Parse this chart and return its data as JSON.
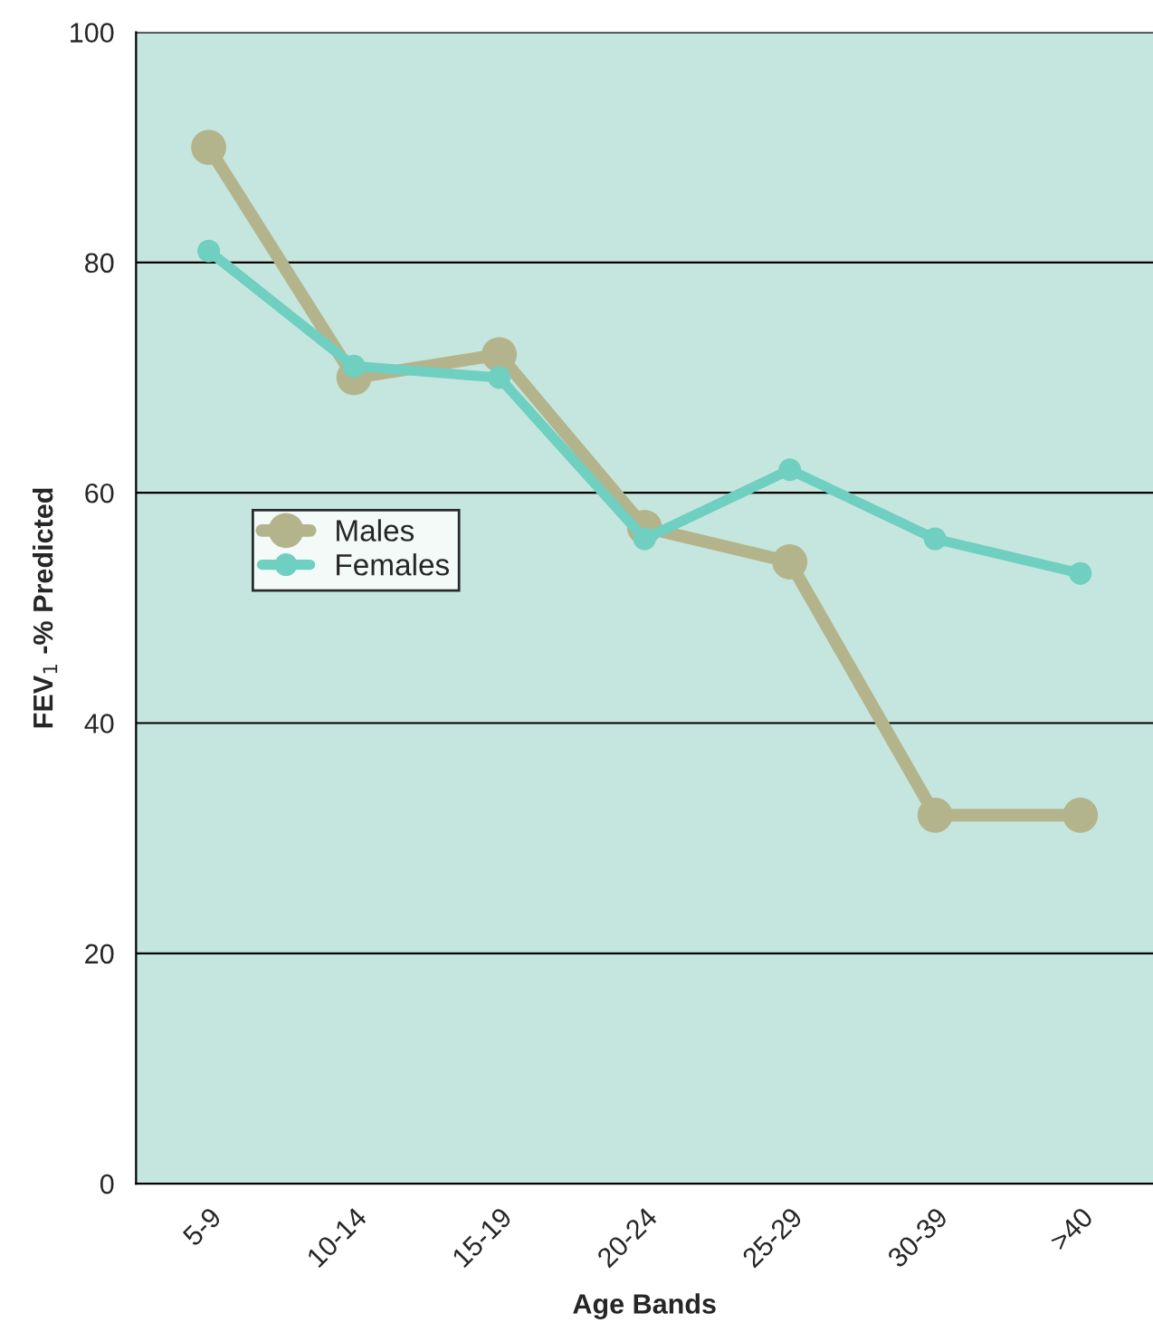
{
  "chart_data": {
    "type": "line",
    "xlabel": "Age Bands",
    "ylabel": "FEV$_{1}$ -% Predicted",
    "categories": [
      "5-9",
      "10-14",
      "15-19",
      "20-24",
      "25-29",
      "30-39",
      ">40"
    ],
    "series": [
      {
        "name": "Males",
        "color": "#b4b48c",
        "values": [
          90,
          70,
          72,
          57,
          54,
          32,
          32
        ]
      },
      {
        "name": "Females",
        "color": "#6fcfc0",
        "values": [
          81,
          71,
          70,
          56,
          62,
          56,
          53
        ]
      }
    ],
    "ylim": [
      0,
      100
    ],
    "yticks": [
      0,
      20,
      40,
      60,
      80,
      100
    ],
    "grid": "y",
    "legend": "left",
    "marker": "circle",
    "line_style": "solid"
  }
}
